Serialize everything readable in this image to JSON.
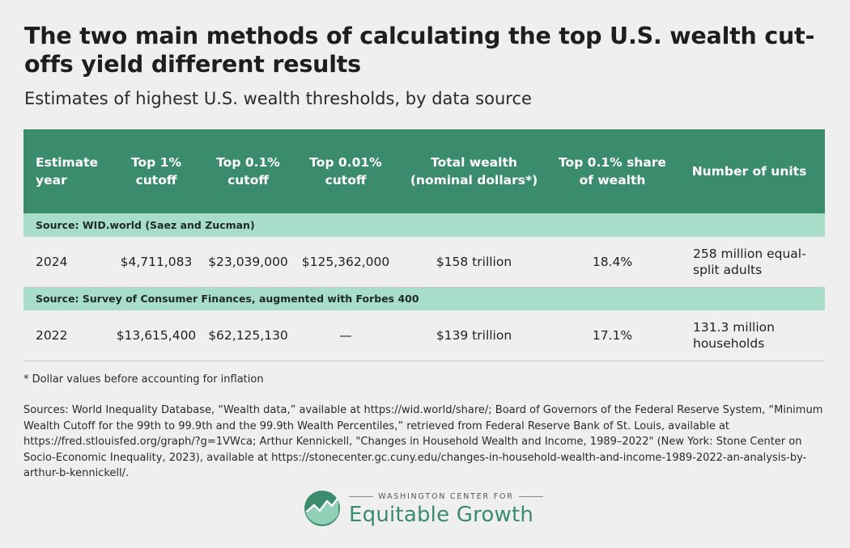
{
  "title": "The two main methods of calculating the top U.S. wealth cut-offs yield different results",
  "subtitle": "Estimates of highest U.S. wealth thresholds, by data source",
  "chart_data": {
    "type": "table",
    "columns": [
      "Estimate year",
      "Top 1% cutoff",
      "Top 0.1% cutoff",
      "Top 0.01% cutoff",
      "Total wealth (nominal dollars*)",
      "Top 0.1% share of wealth",
      "Number of units"
    ],
    "groups": [
      {
        "source": "Source: WID.world (Saez and Zucman)",
        "row": [
          "2024",
          "$4,711,083",
          "$23,039,000",
          "$125,362,000",
          "$158 trillion",
          "18.4%",
          "258 million equal-split adults"
        ]
      },
      {
        "source": "Source: Survey of Consumer Finances, augmented with Forbes 400",
        "row": [
          "2022",
          "$13,615,400",
          "$62,125,130",
          "—",
          "$139 trillion",
          "17.1%",
          "131.3 million households"
        ]
      }
    ]
  },
  "footnote": "* Dollar values before accounting for inflation",
  "sources": "Sources: World Inequality Database, “Wealth data,” available at https://wid.world/share/; Board of Governors of the Federal Reserve System, “Minimum Wealth Cutoff for the 99th to 99.9th and the 99.9th Wealth Percentiles,” retrieved from Federal Reserve Bank of St. Louis, available at https://fred.stlouisfed.org/graph/?g=1VWca; Arthur Kennickell, \"Changes in Household Wealth and Income, 1989–2022\" (New York: Stone Center on Socio-Economic Inequality, 2023), available at https://stonecenter.gc.cuny.edu/changes-in-household-wealth-and-income-1989-2022-an-analysis-by-arthur-b-kennickell/.",
  "logo": {
    "top": "WASHINGTON CENTER FOR",
    "main": "Equitable Growth",
    "icon": "equitable-growth-logo-icon"
  },
  "colors": {
    "header": "#3b8c6d",
    "source_band": "#a8ddca",
    "background": "#efefef"
  }
}
